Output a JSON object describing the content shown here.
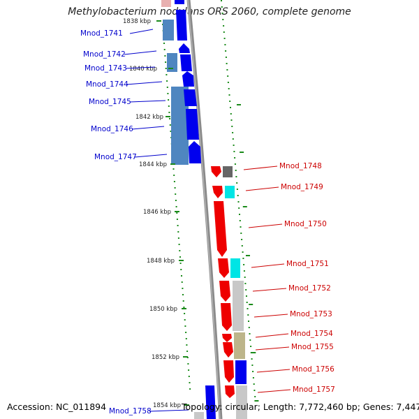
{
  "title": "Methylobacterium nodulans ORS 2060, complete genome",
  "footer": {
    "accession": "Accession: NC_011894",
    "summary": "Topology: circular; Length: 7,772,460 bp; Genes: 7,447"
  },
  "ruler_ticks": [
    "1838 kbp",
    "1840 kbp",
    "1842 kbp",
    "1844 kbp",
    "1846 kbp",
    "1848 kbp",
    "1850 kbp",
    "1852 kbp",
    "1854 kbp"
  ],
  "genes_left": [
    "Mnod_1741",
    "Mnod_1742",
    "Mnod_1743",
    "Mnod_1744",
    "Mnod_1745",
    "Mnod_1746",
    "Mnod_1747",
    "Mnod_1758"
  ],
  "genes_right": [
    "Mnod_1748",
    "Mnod_1749",
    "Mnod_1750",
    "Mnod_1751",
    "Mnod_1752",
    "Mnod_1753",
    "Mnod_1754",
    "Mnod_1755",
    "Mnod_1756",
    "Mnod_1757"
  ],
  "colors": {
    "forward_gene": "#0000ee",
    "forward_feature": "#4f86c0",
    "reverse_gene": "#ee0000",
    "label_left": "#0000cc",
    "label_right": "#cc0000",
    "backbone": "#8a8a8a",
    "gc_skew_dots": "#1a8a1a",
    "cyan_feature": "#00e5e5",
    "gray_feature": "#c8c8c8",
    "olive_feature": "#bdb58a",
    "dark_feature": "#666666"
  }
}
